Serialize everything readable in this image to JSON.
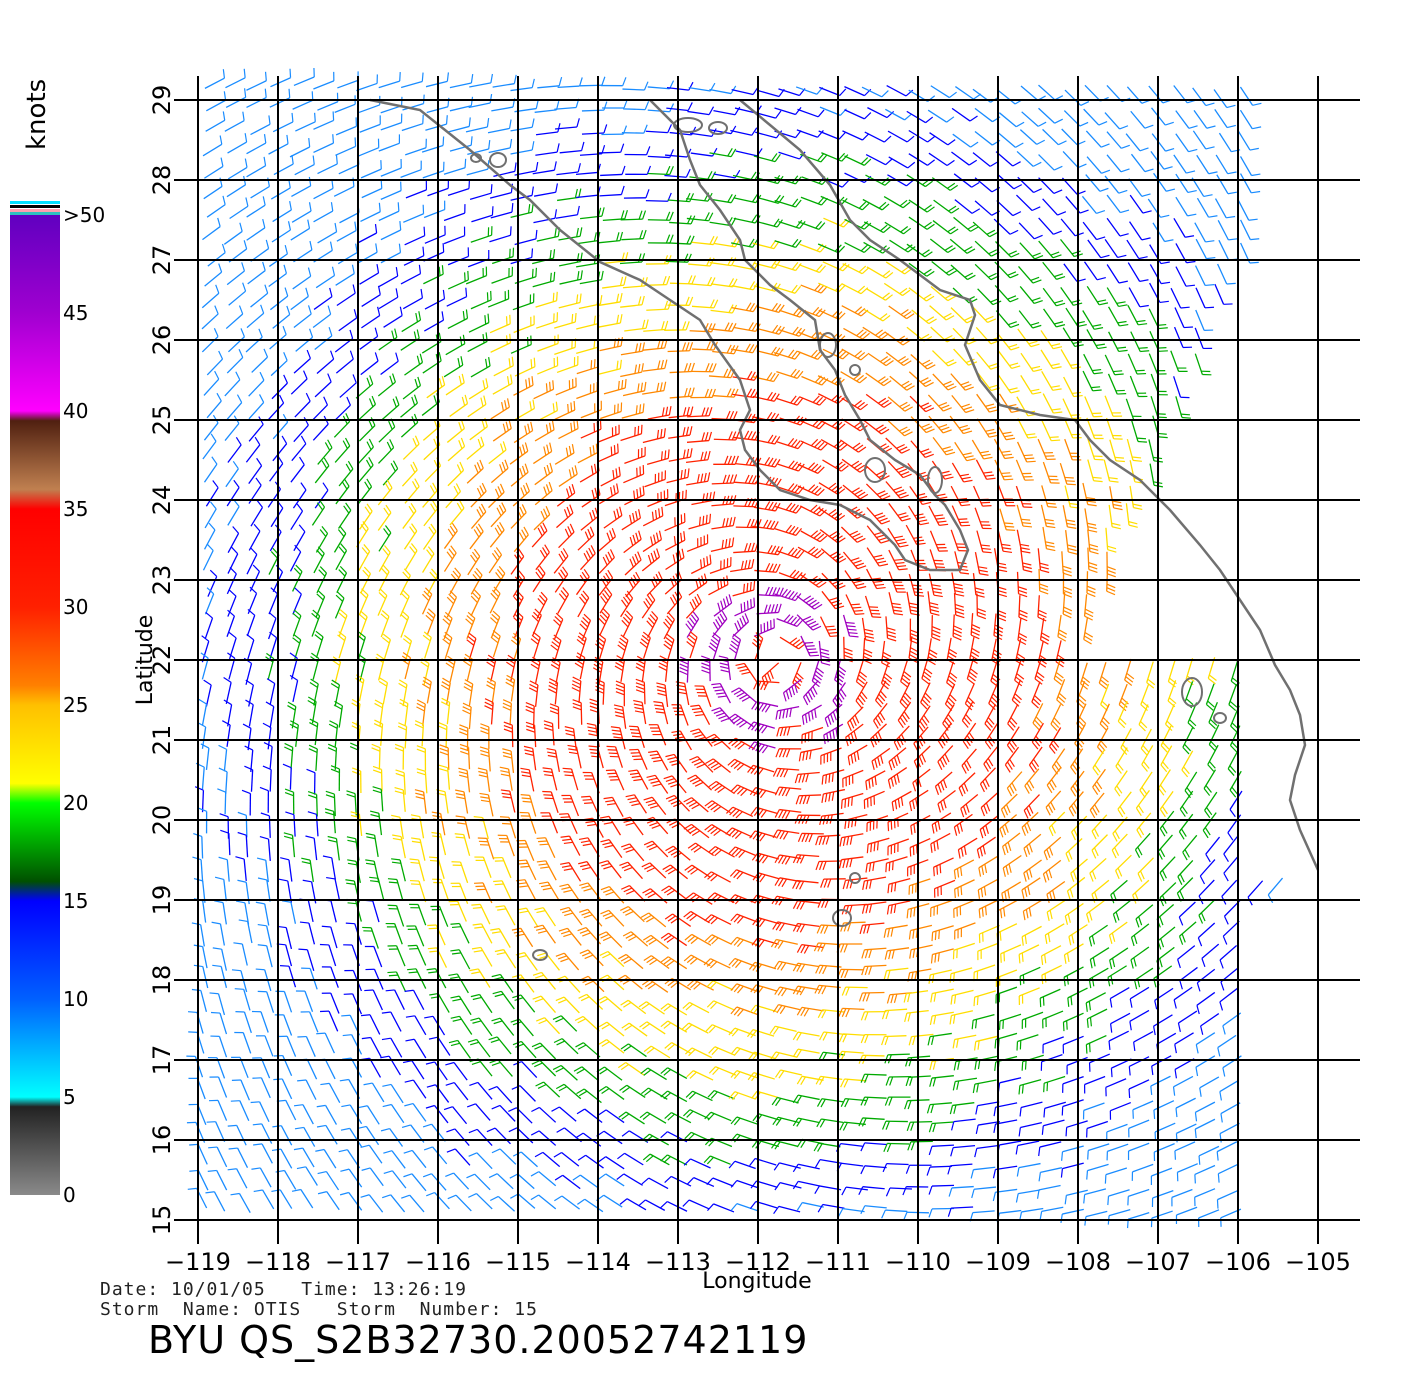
{
  "title": "BYU  QS_S2B32730.20052742119",
  "info": {
    "date_line": "Date: 10/01/05   Time: 13:26:19",
    "storm_line": "Storm  Name: OTIS   Storm  Number: 15"
  },
  "axes": {
    "xlabel": "Longitude",
    "ylabel": "Latitude",
    "lon_ticks": [
      "−119",
      "−118",
      "−117",
      "−116",
      "−115",
      "−114",
      "−113",
      "−112",
      "−111",
      "−110",
      "−109",
      "−108",
      "−107",
      "−106",
      "−105"
    ],
    "lat_ticks": [
      "15",
      "16",
      "17",
      "18",
      "19",
      "20",
      "21",
      "22",
      "23",
      "24",
      "25",
      "26",
      "27",
      "28",
      "29"
    ],
    "lon_range": [
      -119,
      -104.6
    ],
    "lat_range": [
      15,
      29.3
    ]
  },
  "colorbar": {
    "unit": "knots",
    "labels": [
      "0",
      "5",
      "10",
      "15",
      "20",
      "25",
      "30",
      "35",
      "40",
      "45",
      ">50"
    ],
    "colors": [
      "#888888",
      "#111111",
      "#00f0ff",
      "#0060ff",
      "#0000ff",
      "#007000",
      "#00ff00",
      "#ffee00",
      "#ffb000",
      "#ff6000",
      "#ff0000",
      "#b06030",
      "#401010",
      "#ff00ff",
      "#8000ff"
    ]
  },
  "storm": {
    "name": "OTIS",
    "center_lon": -111.8,
    "center_lat": 22.0
  },
  "wind_colors": {
    "calm": "#0000ff",
    "light": "#1a8cff",
    "moderate": "#00aa00",
    "fresh": "#ffdd00",
    "strong": "#ff8800",
    "gale": "#ff2200",
    "storm": "#a000c0"
  }
}
